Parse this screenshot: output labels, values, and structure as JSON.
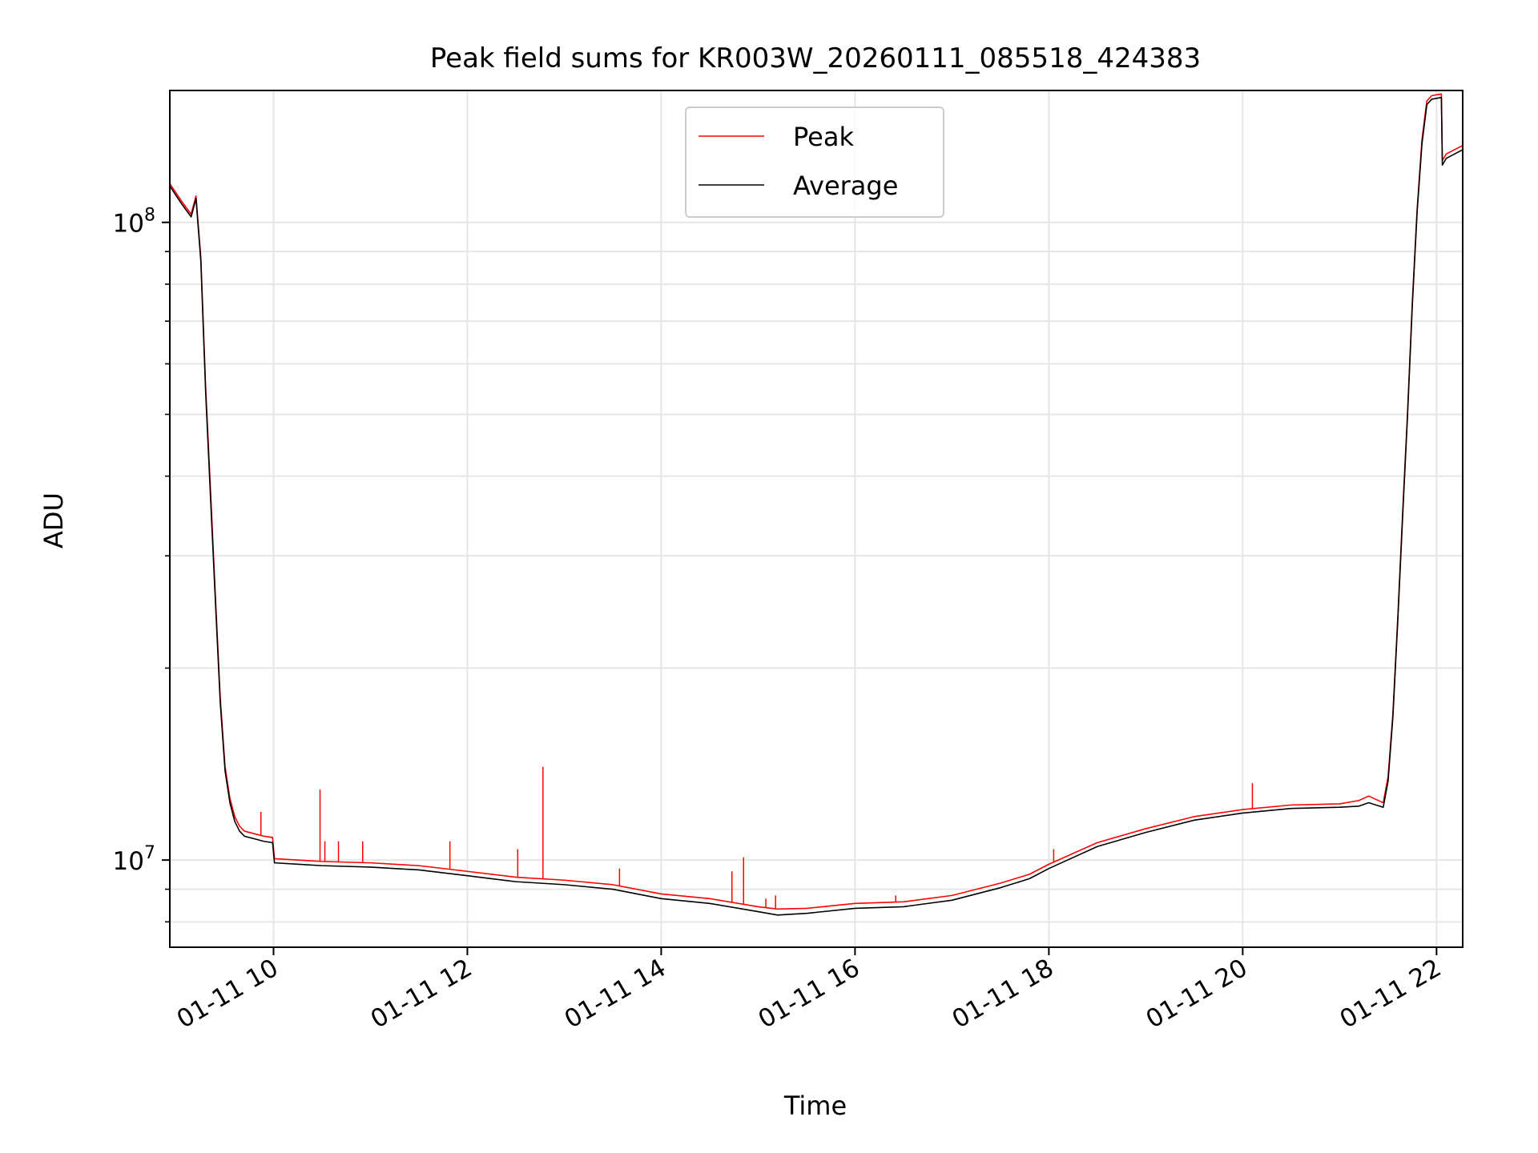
{
  "chart_data": {
    "type": "line",
    "title": "Peak field sums for KR003W_20260111_085518_424383",
    "xlabel": "Time",
    "ylabel": "ADU",
    "yscale": "log",
    "xlim": [
      8.93,
      22.27
    ],
    "ylim": [
      7300000,
      161000000
    ],
    "x_ticks": [
      {
        "value": 10,
        "label": "01-11 10"
      },
      {
        "value": 12,
        "label": "01-11 12"
      },
      {
        "value": 14,
        "label": "01-11 14"
      },
      {
        "value": 16,
        "label": "01-11 16"
      },
      {
        "value": 18,
        "label": "01-11 18"
      },
      {
        "value": 20,
        "label": "01-11 20"
      },
      {
        "value": 22,
        "label": "01-11 22"
      }
    ],
    "y_major_ticks": [
      {
        "value": 10000000,
        "base": "10",
        "exp": "7"
      },
      {
        "value": 100000000,
        "base": "10",
        "exp": "8"
      }
    ],
    "y_minor_ticks": [
      8000000,
      9000000,
      20000000,
      30000000,
      40000000,
      50000000,
      60000000,
      70000000,
      80000000,
      90000000
    ],
    "grid": true,
    "legend_position": "top-center",
    "series": [
      {
        "name": "Peak",
        "color": "#ff0000"
      },
      {
        "name": "Average",
        "color": "#000000"
      }
    ],
    "x": [
      8.93,
      9.05,
      9.15,
      9.2,
      9.25,
      9.3,
      9.35,
      9.4,
      9.45,
      9.5,
      9.55,
      9.6,
      9.65,
      9.7,
      9.8,
      9.9,
      9.99,
      10.01,
      10.5,
      11.0,
      11.5,
      12.0,
      12.5,
      13.0,
      13.5,
      14.0,
      14.5,
      15.0,
      15.2,
      15.5,
      16.0,
      16.5,
      17.0,
      17.5,
      17.8,
      18.0,
      18.5,
      19.0,
      19.5,
      20.0,
      20.5,
      21.0,
      21.2,
      21.3,
      21.45,
      21.5,
      21.55,
      21.6,
      21.65,
      21.7,
      21.75,
      21.8,
      21.85,
      21.9,
      21.95,
      22.05,
      22.06,
      22.1,
      22.27
    ],
    "peak_values": [
      115000000,
      108000000,
      103000000,
      110000000,
      88000000,
      55000000,
      38000000,
      26000000,
      18000000,
      14000000,
      12500000,
      11700000,
      11300000,
      11100000,
      11000000,
      10900000,
      10850000,
      10050000,
      9950000,
      9900000,
      9800000,
      9600000,
      9400000,
      9300000,
      9150000,
      8850000,
      8700000,
      8450000,
      8380000,
      8400000,
      8550000,
      8600000,
      8800000,
      9200000,
      9500000,
      9850000,
      10650000,
      11200000,
      11700000,
      12000000,
      12200000,
      12250000,
      12400000,
      12600000,
      12300000,
      13500000,
      17000000,
      24000000,
      35000000,
      50000000,
      75000000,
      105000000,
      135000000,
      155000000,
      158000000,
      159000000,
      125000000,
      128000000,
      132000000
    ],
    "average_values": [
      114000000,
      107000000,
      102000000,
      109000000,
      87000000,
      54000000,
      37000000,
      25500000,
      17700000,
      13800000,
      12300000,
      11500000,
      11100000,
      10900000,
      10800000,
      10700000,
      10650000,
      9900000,
      9800000,
      9750000,
      9650000,
      9450000,
      9250000,
      9150000,
      9000000,
      8700000,
      8550000,
      8300000,
      8200000,
      8250000,
      8400000,
      8450000,
      8650000,
      9050000,
      9350000,
      9700000,
      10500000,
      11050000,
      11550000,
      11850000,
      12050000,
      12100000,
      12150000,
      12300000,
      12100000,
      13300000,
      16800000,
      23700000,
      34500000,
      49500000,
      74000000,
      104000000,
      133000000,
      153000000,
      156000000,
      157000000,
      123000000,
      126000000,
      130000000
    ],
    "peak_spikes": [
      {
        "x": 9.87,
        "value": 11900000
      },
      {
        "x": 10.48,
        "value": 12900000
      },
      {
        "x": 10.53,
        "value": 10700000
      },
      {
        "x": 10.67,
        "value": 10700000
      },
      {
        "x": 10.92,
        "value": 10700000
      },
      {
        "x": 11.82,
        "value": 10700000
      },
      {
        "x": 12.52,
        "value": 10400000
      },
      {
        "x": 12.78,
        "value": 14000000
      },
      {
        "x": 13.57,
        "value": 9700000
      },
      {
        "x": 14.73,
        "value": 9600000
      },
      {
        "x": 14.85,
        "value": 10100000
      },
      {
        "x": 15.08,
        "value": 8700000
      },
      {
        "x": 15.18,
        "value": 8800000
      },
      {
        "x": 16.42,
        "value": 8800000
      },
      {
        "x": 18.05,
        "value": 10400000
      },
      {
        "x": 20.1,
        "value": 13200000
      }
    ]
  }
}
